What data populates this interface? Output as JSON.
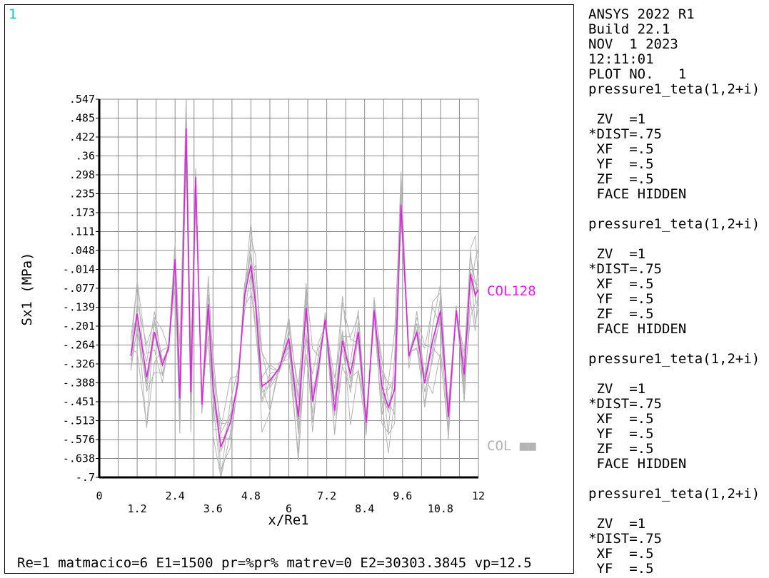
{
  "window": {
    "number": "1"
  },
  "info_lines": [
    "ANSYS 2022 R1",
    "Build 22.1",
    "NOV  1 2023",
    "12:11:01",
    "PLOT NO.   1",
    "pressure1_teta(1,2+i)",
    "",
    " ZV  =1",
    "*DIST=.75",
    " XF  =.5",
    " YF  =.5",
    " ZF  =.5",
    " FACE HIDDEN",
    "",
    "pressure1_teta(1,2+i)",
    "",
    " ZV  =1",
    "*DIST=.75",
    " XF  =.5",
    " YF  =.5",
    " ZF  =.5",
    " FACE HIDDEN",
    "",
    "pressure1_teta(1,2+i)",
    "",
    " ZV  =1",
    "*DIST=.75",
    " XF  =.5",
    " YF  =.5",
    " ZF  =.5",
    " FACE HIDDEN",
    "",
    "pressure1_teta(1,2+i)",
    "",
    " ZV  =1",
    "*DIST=.75",
    " XF  =.5",
    " YF  =.5"
  ],
  "footer": "Re=1 matmacico=6 E1=1500 pr=%pr% matrev=0 E2=30303.3845 vp=12.5",
  "colors": {
    "highlight": "#e020e0",
    "grey": "#b4b4b4",
    "grid": "#8c8c8c",
    "winnum": "#00cccc"
  },
  "chart_data": {
    "type": "line",
    "xlabel": "x/Re1",
    "ylabel": "Sx1 (MPa)",
    "xlim": [
      0,
      12
    ],
    "ylim": [
      -0.7,
      0.547
    ],
    "x_ticks_upper": [
      "0",
      "2.4",
      "4.8",
      "7.2",
      "9.6",
      "12"
    ],
    "x_ticks_lower": [
      "1.2",
      "3.6",
      "6",
      "8.4",
      "10.8"
    ],
    "y_ticks": [
      ".547",
      ".485",
      ".422",
      ".36",
      ".298",
      ".235",
      ".173",
      ".111",
      ".048",
      "-.014",
      "-.077",
      "-.139",
      "-.201",
      "-.264",
      "-.326",
      "-.388",
      "-.451",
      "-.513",
      "-.576",
      "-.638",
      "-.7"
    ],
    "grid": true,
    "legend": [
      {
        "label": "COL128",
        "color": "#e020e0"
      },
      {
        "label": "COL ■■",
        "color": "#b4b4b4"
      }
    ],
    "highlight_series": {
      "name": "COL128",
      "x": [
        1.0,
        1.2,
        1.5,
        1.75,
        2.0,
        2.2,
        2.4,
        2.55,
        2.75,
        2.9,
        3.05,
        3.25,
        3.45,
        3.6,
        3.85,
        4.15,
        4.4,
        4.6,
        4.8,
        4.95,
        5.15,
        5.4,
        5.7,
        6.0,
        6.3,
        6.55,
        6.75,
        6.95,
        7.15,
        7.45,
        7.7,
        7.95,
        8.2,
        8.45,
        8.7,
        8.95,
        9.15,
        9.35,
        9.55,
        9.8,
        10.05,
        10.3,
        10.55,
        10.8,
        11.05,
        11.3,
        11.55,
        11.75,
        11.9,
        12.0
      ],
      "y": [
        -0.3,
        -0.16,
        -0.37,
        -0.22,
        -0.33,
        -0.27,
        0.02,
        -0.44,
        0.45,
        -0.42,
        0.29,
        -0.46,
        -0.13,
        -0.4,
        -0.6,
        -0.52,
        -0.38,
        -0.1,
        0.0,
        -0.13,
        -0.4,
        -0.38,
        -0.34,
        -0.24,
        -0.5,
        -0.14,
        -0.45,
        -0.33,
        -0.18,
        -0.48,
        -0.25,
        -0.36,
        -0.22,
        -0.52,
        -0.15,
        -0.4,
        -0.47,
        -0.41,
        0.2,
        -0.3,
        -0.22,
        -0.39,
        -0.25,
        -0.15,
        -0.5,
        -0.15,
        -0.36,
        -0.03,
        -0.1,
        -0.08
      ]
    }
  }
}
